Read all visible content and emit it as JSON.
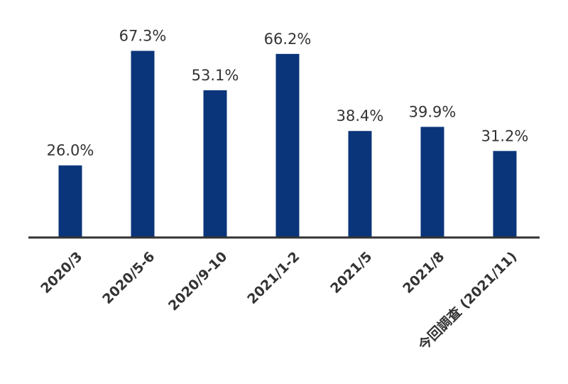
{
  "chart_data": {
    "type": "bar",
    "categories": [
      "2020/3",
      "2020/5-6",
      "2020/9-10",
      "2021/1-2",
      "2021/5",
      "2021/8",
      "今回調査 (2021/11)"
    ],
    "values": [
      26.0,
      67.3,
      53.1,
      66.2,
      38.4,
      39.9,
      31.2
    ],
    "data_labels": [
      "26.0%",
      "67.3%",
      "53.1%",
      "66.2%",
      "38.4%",
      "39.9%",
      "31.2%"
    ],
    "title": "",
    "xlabel": "",
    "ylabel": "",
    "ylim": [
      0,
      80
    ],
    "grid": false,
    "legend": "none",
    "bar_color": "#0b357a",
    "axis_color": "#333333",
    "label_color": "#333333"
  }
}
